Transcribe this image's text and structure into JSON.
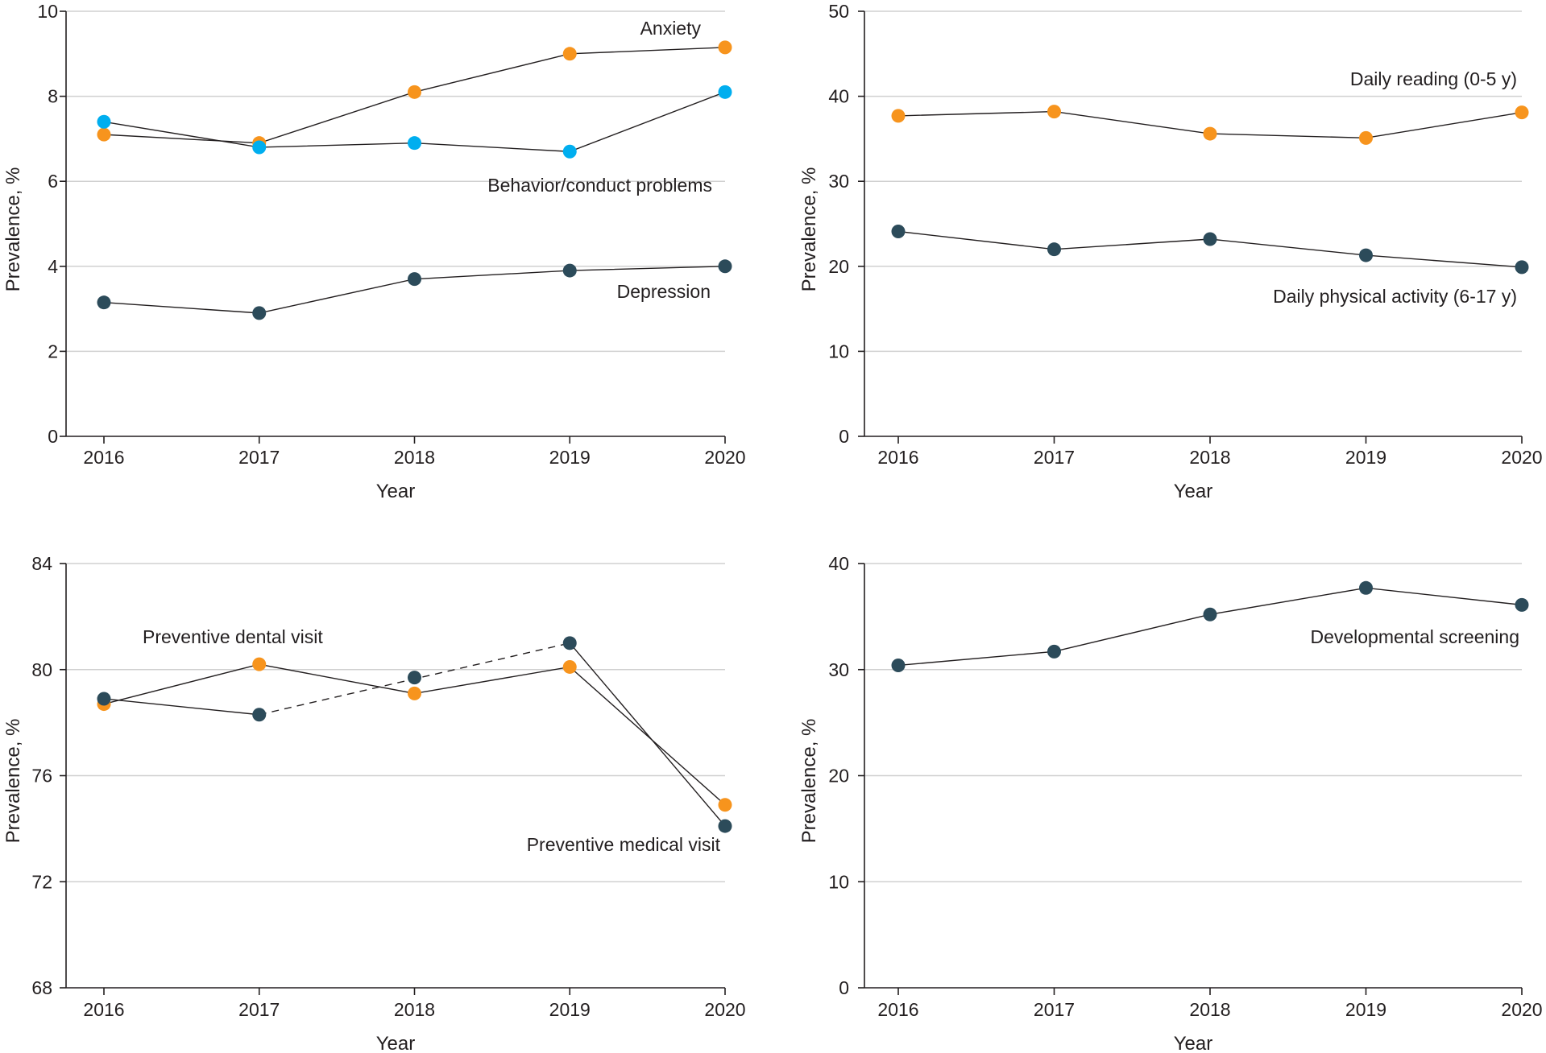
{
  "colors": {
    "orange": "#f7941d",
    "blue": "#00aeef",
    "navy": "#2c4b5a",
    "line": "#231f20",
    "grid": "#d0d0d0"
  },
  "chart_data": [
    {
      "type": "line",
      "title": "",
      "xlabel": "Year",
      "ylabel": "Prevalence, %",
      "ylim": [
        0,
        10
      ],
      "yticks": [
        0,
        2,
        4,
        6,
        8,
        10
      ],
      "grid": true,
      "categories": [
        "2016",
        "2017",
        "2018",
        "2019",
        "2020"
      ],
      "series": [
        {
          "name": "Anxiety",
          "color": "orange",
          "line_style": "solid",
          "values": [
            7.1,
            6.9,
            8.1,
            9.0,
            9.15
          ]
        },
        {
          "name": "Behavior/conduct problems",
          "color": "blue",
          "line_style": "solid",
          "values": [
            7.4,
            6.8,
            6.9,
            6.7,
            8.1
          ]
        },
        {
          "name": "Depression",
          "color": "navy",
          "line_style": "solid",
          "values": [
            3.15,
            2.9,
            3.7,
            3.9,
            4.0
          ]
        }
      ]
    },
    {
      "type": "line",
      "title": "",
      "xlabel": "Year",
      "ylabel": "Prevalence, %",
      "ylim": [
        0,
        50
      ],
      "yticks": [
        0,
        10,
        20,
        30,
        40,
        50
      ],
      "grid": true,
      "categories": [
        "2016",
        "2017",
        "2018",
        "2019",
        "2020"
      ],
      "series": [
        {
          "name": "Daily reading (0-5 y)",
          "color": "orange",
          "line_style": "solid",
          "values": [
            37.7,
            38.2,
            35.6,
            35.1,
            38.1
          ]
        },
        {
          "name": "Daily physical activity (6-17 y)",
          "color": "navy",
          "line_style": "solid",
          "values": [
            24.1,
            22.0,
            23.2,
            21.3,
            19.9
          ]
        }
      ]
    },
    {
      "type": "line",
      "title": "",
      "xlabel": "Year",
      "ylabel": "Prevalence, %",
      "ylim": [
        68,
        84
      ],
      "yticks": [
        68,
        72,
        76,
        80,
        84
      ],
      "grid": true,
      "categories": [
        "2016",
        "2017",
        "2018",
        "2019",
        "2020"
      ],
      "series": [
        {
          "name": "Preventive dental visit",
          "color": "orange",
          "line_style": "solid",
          "values": [
            78.7,
            80.2,
            79.1,
            80.1,
            74.9
          ]
        },
        {
          "name": "Preventive medical visit",
          "color": "navy",
          "line_style": "solid",
          "dashed_segments": [
            [
              1,
              3
            ]
          ],
          "values": [
            78.9,
            78.3,
            79.7,
            81.0,
            74.1
          ]
        }
      ]
    },
    {
      "type": "line",
      "title": "",
      "xlabel": "Year",
      "ylabel": "Prevalence, %",
      "ylim": [
        0,
        40
      ],
      "yticks": [
        0,
        10,
        20,
        30,
        40
      ],
      "grid": true,
      "categories": [
        "2016",
        "2017",
        "2018",
        "2019",
        "2020"
      ],
      "series": [
        {
          "name": "Developmental screening",
          "color": "navy",
          "line_style": "solid",
          "values": [
            30.4,
            31.7,
            35.2,
            37.7,
            36.1
          ]
        }
      ]
    }
  ]
}
